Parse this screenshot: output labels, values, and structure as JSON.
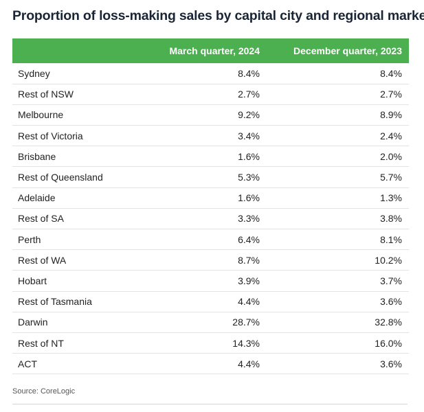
{
  "title": "Proportion of loss-making sales by capital city and regional market",
  "source": "Source: CoreLogic",
  "chart_data": {
    "type": "table",
    "title": "Proportion of loss-making sales by capital city and regional market",
    "columns": [
      "",
      "March quarter, 2024",
      "December quarter, 2023"
    ],
    "rows": [
      {
        "market": "Sydney",
        "march_2024": "8.4%",
        "december_2023": "8.4%"
      },
      {
        "market": "Rest of NSW",
        "march_2024": "2.7%",
        "december_2023": "2.7%"
      },
      {
        "market": "Melbourne",
        "march_2024": "9.2%",
        "december_2023": "8.9%"
      },
      {
        "market": "Rest of Victoria",
        "march_2024": "3.4%",
        "december_2023": "2.4%"
      },
      {
        "market": "Brisbane",
        "march_2024": "1.6%",
        "december_2023": "2.0%"
      },
      {
        "market": "Rest of Queensland",
        "march_2024": "5.3%",
        "december_2023": "5.7%"
      },
      {
        "market": "Adelaide",
        "march_2024": "1.6%",
        "december_2023": "1.3%"
      },
      {
        "market": "Rest of SA",
        "march_2024": "3.3%",
        "december_2023": "3.8%"
      },
      {
        "market": "Perth",
        "march_2024": "6.4%",
        "december_2023": "8.1%"
      },
      {
        "market": "Rest of WA",
        "march_2024": "8.7%",
        "december_2023": "10.2%"
      },
      {
        "market": "Hobart",
        "march_2024": "3.9%",
        "december_2023": "3.7%"
      },
      {
        "market": "Rest of Tasmania",
        "march_2024": "4.4%",
        "december_2023": "3.6%"
      },
      {
        "market": "Darwin",
        "march_2024": "28.7%",
        "december_2023": "32.8%"
      },
      {
        "market": "Rest of NT",
        "march_2024": "14.3%",
        "december_2023": "16.0%"
      },
      {
        "market": "ACT",
        "march_2024": "4.4%",
        "december_2023": "3.6%"
      }
    ],
    "header_color": "#4caf50"
  }
}
